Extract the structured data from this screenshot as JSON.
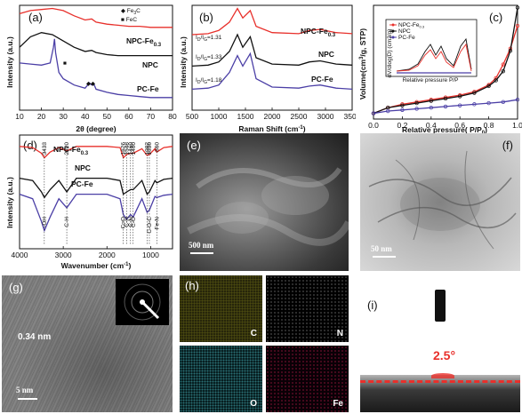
{
  "figure": {
    "panels": {
      "a": {
        "tag": "(a)",
        "legend": [
          {
            "marker": "◆",
            "label": "Fe",
            "sub": "3",
            "tail": "C"
          },
          {
            "marker": "■",
            "label": "FeC",
            "sub": "",
            "tail": ""
          }
        ],
        "series_labels": [
          "NPC-Fe",
          "NPC",
          "PC-Fe"
        ],
        "series_label_sub": "0.3",
        "colors": {
          "NPC-Fe": "#e8302b",
          "NPC": "#111111",
          "PC-Fe": "#4b3fa6"
        }
      },
      "b": {
        "tag": "(b)",
        "ratios": [
          {
            "text": "I",
            "sub1": "D",
            "mid": "/I",
            "sub2": "G",
            "val": "=1.31"
          },
          {
            "text": "I",
            "sub1": "D",
            "mid": "/I",
            "sub2": "G",
            "val": "=1.33"
          },
          {
            "text": "I",
            "sub1": "D",
            "mid": "/I",
            "sub2": "G",
            "val": "=1.18"
          }
        ],
        "series_labels": [
          "NPC-Fe",
          "NPC",
          "PC-Fe"
        ],
        "series_label_sub": "0.3"
      },
      "c": {
        "tag": "(c)",
        "legend": [
          "NPC-Fe0.3",
          "NPC",
          "PC-Fe"
        ]
      },
      "d": {
        "tag": "(d)",
        "series_labels": [
          "NPC-Fe",
          "NPC",
          "PC-Fe"
        ],
        "series_label_sub": "0.3",
        "peaks_top": [
          "3433",
          "2920",
          "1626",
          "1548",
          "1460",
          "1400",
          "1082",
          "1030",
          "860"
        ],
        "assign_bottom": [
          "-OH",
          "C-H",
          "C=O",
          "C-H",
          "C-N",
          "C-O",
          "C-O-C",
          "Fe-N"
        ]
      },
      "e": {
        "tag": "(e)",
        "scale": "500 nm"
      },
      "f": {
        "tag": "(f)",
        "scale": "50 nm"
      },
      "g": {
        "tag": "(g)",
        "scale": "5 nm",
        "lattice": "0.34 nm"
      },
      "h": {
        "tag": "(h)",
        "maps": [
          "C",
          "N",
          "O",
          "Fe"
        ]
      },
      "i": {
        "tag": "(i)",
        "angle": "2.5°"
      }
    }
  },
  "chart_data": [
    {
      "type": "line",
      "panel": "a",
      "xlabel": "2θ (degree)",
      "ylabel": "Intensity (a.u.)",
      "xlim": [
        10,
        80
      ],
      "xticks": [
        10,
        20,
        30,
        40,
        50,
        60,
        70,
        80
      ],
      "series": [
        {
          "name": "NPC-Fe0.3",
          "x": [
            10,
            15,
            20,
            25,
            30,
            35,
            40,
            43,
            45,
            50,
            55,
            60,
            65,
            70,
            75,
            80
          ],
          "y": [
            0.92,
            0.95,
            0.96,
            0.97,
            0.95,
            0.9,
            0.86,
            0.87,
            0.84,
            0.82,
            0.81,
            0.8,
            0.8,
            0.79,
            0.79,
            0.79
          ]
        },
        {
          "name": "NPC",
          "x": [
            10,
            15,
            20,
            25,
            30,
            35,
            40,
            43,
            45,
            50,
            55,
            60,
            65,
            70,
            75,
            80
          ],
          "y": [
            0.6,
            0.7,
            0.74,
            0.72,
            0.66,
            0.6,
            0.56,
            0.57,
            0.55,
            0.53,
            0.52,
            0.52,
            0.52,
            0.52,
            0.52,
            0.52
          ]
        },
        {
          "name": "PC-Fe",
          "x": [
            10,
            15,
            20,
            24,
            25.5,
            26,
            26.5,
            28,
            30,
            35,
            40,
            42,
            43,
            44,
            45,
            50,
            55,
            60,
            65,
            70,
            75,
            80
          ],
          "y": [
            0.45,
            0.44,
            0.43,
            0.45,
            0.6,
            0.68,
            0.55,
            0.36,
            0.3,
            0.24,
            0.21,
            0.26,
            0.24,
            0.25,
            0.2,
            0.17,
            0.15,
            0.14,
            0.13,
            0.12,
            0.12,
            0.12
          ]
        }
      ]
    },
    {
      "type": "line",
      "panel": "b",
      "xlabel": "Raman Shift (cm-1)",
      "ylabel": "Intensity (a.u.)",
      "xlim": [
        500,
        3500
      ],
      "xticks": [
        500,
        1000,
        1500,
        2000,
        2500,
        3000,
        3500
      ],
      "series": [
        {
          "name": "NPC-Fe0.3",
          "x": [
            500,
            800,
            1000,
            1200,
            1350,
            1450,
            1590,
            1700,
            2000,
            2500,
            2700,
            2900,
            3200,
            3500
          ],
          "y": [
            0.72,
            0.73,
            0.76,
            0.84,
            0.97,
            0.88,
            0.95,
            0.8,
            0.74,
            0.73,
            0.76,
            0.77,
            0.74,
            0.73
          ]
        },
        {
          "name": "NPC",
          "x": [
            500,
            800,
            1000,
            1200,
            1350,
            1450,
            1590,
            1700,
            2000,
            2500,
            2700,
            2900,
            3200,
            3500
          ],
          "y": [
            0.42,
            0.43,
            0.46,
            0.56,
            0.72,
            0.6,
            0.7,
            0.5,
            0.44,
            0.43,
            0.46,
            0.47,
            0.44,
            0.43
          ]
        },
        {
          "name": "PC-Fe",
          "x": [
            500,
            800,
            1000,
            1200,
            1350,
            1450,
            1590,
            1700,
            2000,
            2500,
            2700,
            2900,
            3200,
            3500
          ],
          "y": [
            0.2,
            0.21,
            0.24,
            0.36,
            0.52,
            0.42,
            0.54,
            0.3,
            0.22,
            0.21,
            0.23,
            0.24,
            0.21,
            0.2
          ]
        }
      ]
    },
    {
      "type": "line",
      "panel": "c",
      "xlabel": "Relative pressure( P/P0)",
      "ylabel": "Volume(cm3/g, STP)",
      "xlim": [
        0,
        1
      ],
      "xticks": [
        0.0,
        0.2,
        0.4,
        0.6,
        0.8,
        1.0
      ],
      "series": [
        {
          "name": "NPC-Fe0.3",
          "x": [
            0.0,
            0.1,
            0.2,
            0.3,
            0.4,
            0.5,
            0.6,
            0.7,
            0.8,
            0.85,
            0.9,
            0.95,
            1.0
          ],
          "y": [
            0.05,
            0.1,
            0.13,
            0.15,
            0.17,
            0.19,
            0.21,
            0.24,
            0.3,
            0.36,
            0.48,
            0.62,
            0.82
          ]
        },
        {
          "name": "NPC",
          "x": [
            0.0,
            0.1,
            0.2,
            0.3,
            0.4,
            0.5,
            0.6,
            0.7,
            0.8,
            0.85,
            0.9,
            0.95,
            1.0
          ],
          "y": [
            0.05,
            0.1,
            0.12,
            0.14,
            0.16,
            0.18,
            0.2,
            0.23,
            0.29,
            0.34,
            0.42,
            0.6,
            0.98
          ]
        },
        {
          "name": "PC-Fe",
          "x": [
            0.0,
            0.1,
            0.2,
            0.3,
            0.4,
            0.5,
            0.6,
            0.7,
            0.8,
            0.9,
            1.0
          ],
          "y": [
            0.05,
            0.07,
            0.08,
            0.09,
            0.1,
            0.11,
            0.12,
            0.13,
            0.14,
            0.15,
            0.17
          ]
        }
      ]
    },
    {
      "type": "line",
      "panel": "d",
      "xlabel": "Wavenumber (cm-1)",
      "ylabel": "Intensity (a.u.)",
      "xlim": [
        4000,
        500
      ],
      "xticks": [
        4000,
        3000,
        2000,
        1000
      ],
      "series": [
        {
          "name": "NPC-Fe0.3",
          "x": [
            4000,
            3700,
            3500,
            3433,
            3300,
            3100,
            2920,
            2700,
            2000,
            1700,
            1626,
            1548,
            1460,
            1400,
            1200,
            1082,
            1030,
            900,
            860,
            700,
            500
          ],
          "y": [
            0.9,
            0.89,
            0.84,
            0.8,
            0.85,
            0.89,
            0.86,
            0.9,
            0.9,
            0.89,
            0.8,
            0.83,
            0.84,
            0.84,
            0.88,
            0.82,
            0.83,
            0.88,
            0.85,
            0.89,
            0.9
          ]
        },
        {
          "name": "NPC",
          "x": [
            4000,
            3700,
            3500,
            3433,
            3300,
            3100,
            2920,
            2700,
            2000,
            1700,
            1626,
            1548,
            1460,
            1400,
            1200,
            1082,
            1030,
            900,
            860,
            700,
            500
          ],
          "y": [
            0.62,
            0.6,
            0.5,
            0.45,
            0.52,
            0.6,
            0.5,
            0.62,
            0.62,
            0.6,
            0.48,
            0.5,
            0.52,
            0.52,
            0.6,
            0.48,
            0.5,
            0.6,
            0.58,
            0.61,
            0.62
          ]
        },
        {
          "name": "PC-Fe",
          "x": [
            4000,
            3700,
            3500,
            3433,
            3300,
            3100,
            2920,
            2700,
            2000,
            1700,
            1626,
            1548,
            1460,
            1400,
            1200,
            1082,
            1030,
            900,
            860,
            700,
            500
          ],
          "y": [
            0.48,
            0.44,
            0.24,
            0.16,
            0.28,
            0.44,
            0.36,
            0.48,
            0.48,
            0.44,
            0.3,
            0.26,
            0.3,
            0.28,
            0.44,
            0.32,
            0.34,
            0.46,
            0.45,
            0.47,
            0.48
          ]
        }
      ]
    }
  ]
}
